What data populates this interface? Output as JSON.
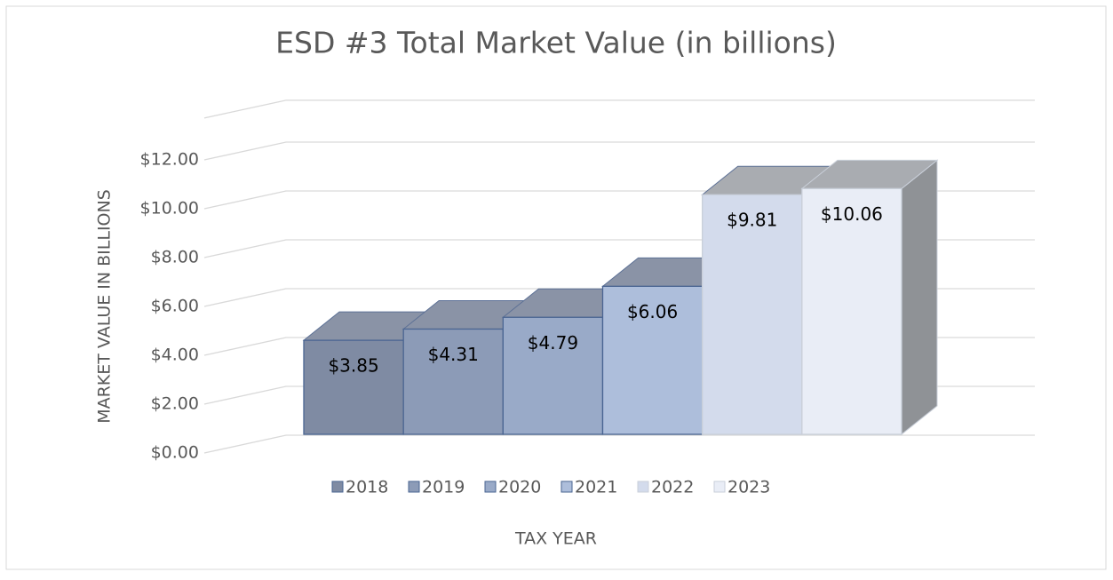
{
  "chart_data": {
    "type": "bar3d",
    "title": "ESD #3 Total Market Value (in billions)",
    "y_label": "MARKET VALUE IN BILLIONS",
    "x_label": "TAX YEAR",
    "series": [
      {
        "name": "2018",
        "color": "#7f8ba3",
        "values": [
          3.85
        ],
        "value_labels": [
          "$3.85"
        ]
      },
      {
        "name": "2019",
        "color": "#8c9bb7",
        "values": [
          4.31
        ],
        "value_labels": [
          "$4.31"
        ]
      },
      {
        "name": "2020",
        "color": "#99aac8",
        "values": [
          4.79
        ],
        "value_labels": [
          "$4.79"
        ]
      },
      {
        "name": "2021",
        "color": "#adbedb",
        "values": [
          6.06
        ],
        "value_labels": [
          "$6.06"
        ]
      },
      {
        "name": "2022",
        "color": "#d3dbec",
        "values": [
          9.81
        ],
        "value_labels": [
          "$9.81"
        ]
      },
      {
        "name": "2023",
        "color": "#e9edf6",
        "values": [
          10.06
        ],
        "value_labels": [
          "$10.06"
        ]
      }
    ],
    "ylim": [
      0,
      12
    ],
    "yticks": [
      {
        "value": 0,
        "label": "$0.00"
      },
      {
        "value": 2,
        "label": "$2.00"
      },
      {
        "value": 4,
        "label": "$4.00"
      },
      {
        "value": 6,
        "label": "$6.00"
      },
      {
        "value": 8,
        "label": "$8.00"
      },
      {
        "value": 10,
        "label": "$10.00"
      },
      {
        "value": 12,
        "label": "$12.00"
      }
    ],
    "grid": true,
    "legend": "bottom"
  }
}
